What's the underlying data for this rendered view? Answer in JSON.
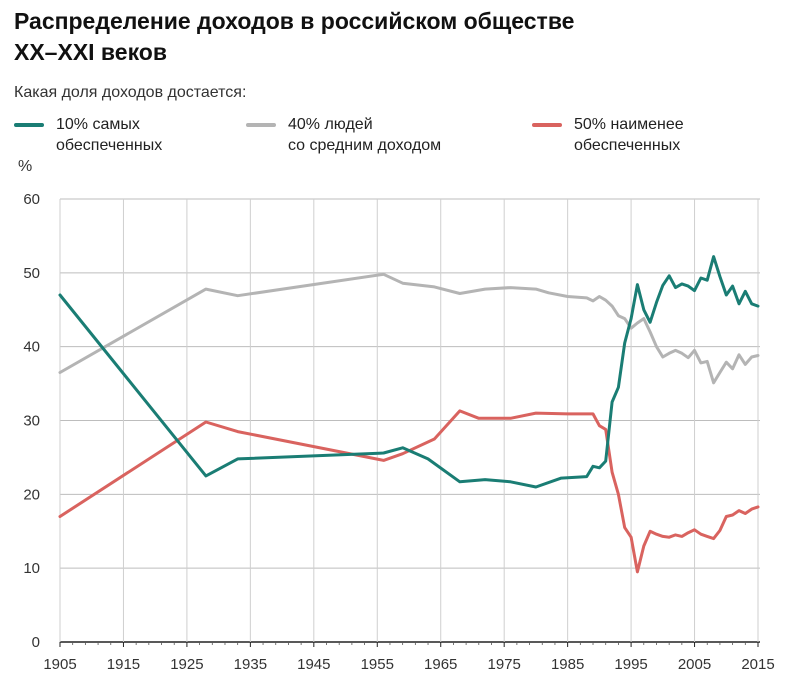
{
  "title_line1": "Распределение доходов в российском обществе",
  "title_line2": "XX–XXI веков",
  "subtitle": "Какая доля доходов достается:",
  "unit": "%",
  "legend": [
    {
      "label": "10% самых\nобеспеченных",
      "color": "#1a7d74"
    },
    {
      "label": "40% людей\nсо средним доходом",
      "color": "#b4b4b4"
    },
    {
      "label": "50% наименее\nобеспеченных",
      "color": "#d9635f"
    }
  ],
  "chart_data": {
    "type": "line",
    "title": "Распределение доходов в российском обществе XX–XXI веков",
    "ylabel": "%",
    "xlim": [
      1905,
      2015
    ],
    "ylim": [
      0,
      60
    ],
    "xticks": [
      1905,
      1915,
      1925,
      1935,
      1945,
      1955,
      1965,
      1975,
      1985,
      1995,
      2005,
      2015
    ],
    "yticks": [
      0,
      10,
      20,
      30,
      40,
      50,
      60
    ],
    "series": [
      {
        "name": "40% людей со средним доходом",
        "color": "#b4b4b4",
        "x": [
          1905,
          1928,
          1933,
          1956,
          1959,
          1964,
          1968,
          1972,
          1976,
          1980,
          1982,
          1985,
          1988,
          1989,
          1990,
          1991,
          1992,
          1993,
          1994,
          1995,
          1996,
          1997,
          1998,
          1999,
          2000,
          2001,
          2002,
          2003,
          2004,
          2005,
          2006,
          2007,
          2008,
          2009,
          2010,
          2011,
          2012,
          2013,
          2014,
          2015
        ],
        "values": [
          36.5,
          47.8,
          46.9,
          49.8,
          48.6,
          48.1,
          47.2,
          47.8,
          48.0,
          47.8,
          47.3,
          46.8,
          46.6,
          46.2,
          46.8,
          46.3,
          45.5,
          44.2,
          43.8,
          42.5,
          43.2,
          43.8,
          42.0,
          40.0,
          38.6,
          39.1,
          39.5,
          39.1,
          38.5,
          39.5,
          37.8,
          38.0,
          35.1,
          36.5,
          37.9,
          37.0,
          38.9,
          37.6,
          38.6,
          38.8
        ]
      },
      {
        "name": "50% наименее обеспеченных",
        "color": "#d9635f",
        "x": [
          1905,
          1928,
          1933,
          1956,
          1959,
          1964,
          1968,
          1971,
          1976,
          1980,
          1985,
          1989,
          1990,
          1991,
          1992,
          1993,
          1994,
          1995,
          1996,
          1997,
          1998,
          1999,
          2000,
          2001,
          2002,
          2003,
          2004,
          2005,
          2006,
          2007,
          2008,
          2009,
          2010,
          2011,
          2012,
          2013,
          2014,
          2015
        ],
        "values": [
          17.0,
          29.8,
          28.5,
          24.6,
          25.5,
          27.5,
          31.3,
          30.3,
          30.3,
          31.0,
          30.9,
          30.9,
          29.3,
          28.8,
          23.0,
          20.0,
          15.5,
          14.2,
          9.5,
          13.0,
          15.0,
          14.6,
          14.3,
          14.2,
          14.5,
          14.3,
          14.8,
          15.2,
          14.6,
          14.3,
          14.0,
          15.1,
          17.0,
          17.2,
          17.8,
          17.4,
          18.0,
          18.3
        ]
      },
      {
        "name": "10% самых обеспеченных",
        "color": "#1a7d74",
        "x": [
          1905,
          1928,
          1933,
          1956,
          1959,
          1963,
          1968,
          1972,
          1976,
          1980,
          1984,
          1988,
          1989,
          1990,
          1991,
          1992,
          1993,
          1994,
          1995,
          1996,
          1997,
          1998,
          1999,
          2000,
          2001,
          2002,
          2003,
          2004,
          2005,
          2006,
          2007,
          2008,
          2009,
          2010,
          2011,
          2012,
          2013,
          2014,
          2015
        ],
        "values": [
          47.0,
          22.5,
          24.8,
          25.6,
          26.3,
          24.8,
          21.7,
          22.0,
          21.7,
          21.0,
          22.2,
          22.4,
          23.8,
          23.6,
          24.5,
          32.5,
          34.5,
          40.5,
          43.8,
          48.4,
          45.0,
          43.3,
          46.0,
          48.3,
          49.6,
          48.0,
          48.5,
          48.2,
          47.6,
          49.3,
          49.0,
          52.2,
          49.5,
          47.0,
          48.2,
          45.8,
          47.5,
          45.8,
          45.5
        ]
      }
    ]
  }
}
